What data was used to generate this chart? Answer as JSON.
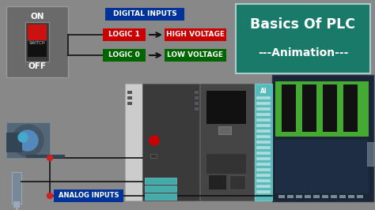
{
  "bg_color": "#888888",
  "title_box_color": "#1a7a6a",
  "title_text": "Basics Of PLC",
  "subtitle_text": "---Animation---",
  "title_text_color": "#ffffff",
  "digital_label": "DIGITAL INPUTS",
  "digital_label_bg": "#003399",
  "digital_label_color": "#ffffff",
  "analog_label": "ANALOG INPUTS",
  "analog_label_bg": "#003399",
  "analog_label_color": "#ffffff",
  "logic1_label": "LOGIC 1",
  "logic1_bg": "#cc0000",
  "logic0_label": "LOGIC 0",
  "logic0_bg": "#006600",
  "hv_label": "HIGH VOLTAGE",
  "hv_bg": "#cc0000",
  "lv_label": "LOW VOLTAGE",
  "lv_bg": "#006600",
  "label_text_color": "#ffffff",
  "switch_box_color": "#6a6a6a",
  "plc_body1_color": "#3a3a3a",
  "plc_body2_color": "#454545",
  "plc_ai_color": "#55bbbb",
  "plc_rack_dark": "#1a2535",
  "plc_green_color": "#44aa33",
  "plc_red_dot": "#cc0000",
  "plc_white_left": "#d0d0d0",
  "arrow_color": "#111111",
  "wire_color": "#111111",
  "dot_color": "#cc2222"
}
